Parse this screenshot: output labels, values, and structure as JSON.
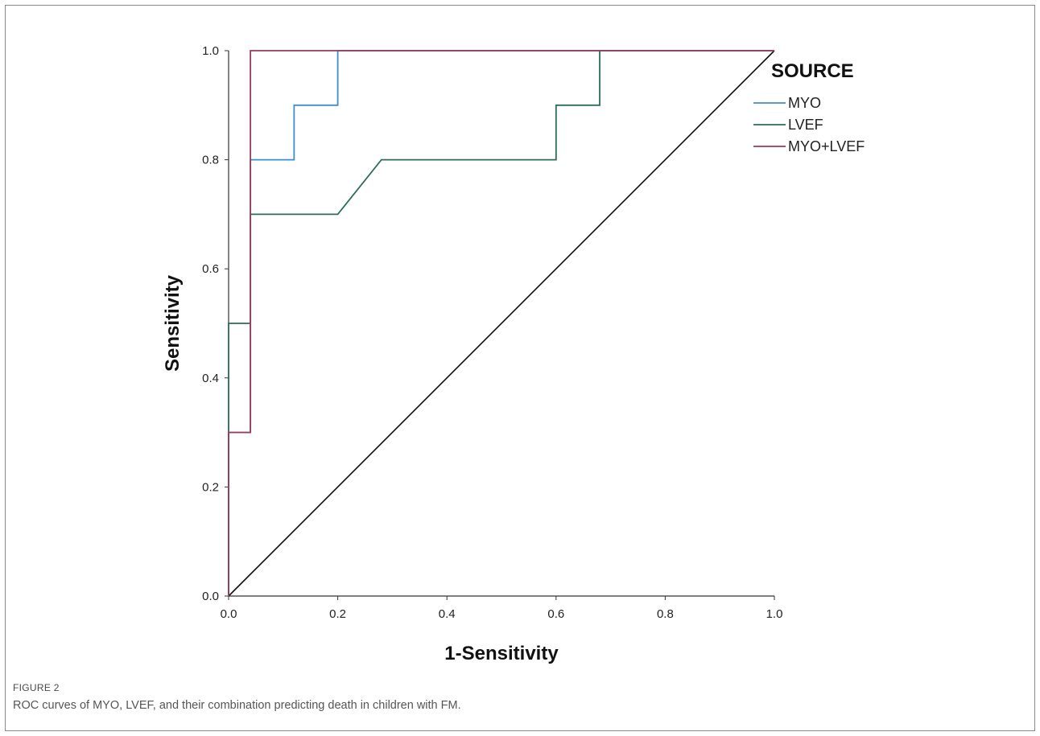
{
  "figure": {
    "label": "FIGURE 2",
    "caption": "ROC curves of MYO, LVEF, and their combination predicting death in children with FM."
  },
  "chart_data": {
    "type": "line",
    "xlabel": "1-Sensitivity",
    "ylabel": "Sensitivity",
    "xlim": [
      0,
      1
    ],
    "ylim": [
      0,
      1
    ],
    "xticks": [
      "0.0",
      "0.2",
      "0.4",
      "0.6",
      "0.8",
      "1.0"
    ],
    "yticks": [
      "0.0",
      "0.2",
      "0.4",
      "0.6",
      "0.8",
      "1.0"
    ],
    "grid": false,
    "legend": {
      "title": "SOURCE",
      "placement": "top-right"
    },
    "series": [
      {
        "name": "MYO",
        "color": "#3e8ec9",
        "x": [
          0,
          0,
          0.04,
          0.04,
          0.12,
          0.12,
          0.2,
          0.2,
          1
        ],
        "y": [
          0,
          0.3,
          0.3,
          0.8,
          0.8,
          0.9,
          0.9,
          1.0,
          1.0
        ]
      },
      {
        "name": "LVEF",
        "color": "#2d6b5a",
        "x": [
          0,
          0,
          0.04,
          0.04,
          0.2,
          0.28,
          0.6,
          0.6,
          0.68,
          0.68,
          1
        ],
        "y": [
          0,
          0.5,
          0.5,
          0.7,
          0.7,
          0.8,
          0.8,
          0.9,
          0.9,
          1.0,
          1.0
        ]
      },
      {
        "name": "MYO+LVEF",
        "color": "#9a3a5a",
        "x": [
          0,
          0,
          0.04,
          0.04,
          1
        ],
        "y": [
          0,
          0.3,
          0.3,
          1.0,
          1.0
        ]
      }
    ],
    "reference_line": {
      "color": "#111111",
      "x": [
        0,
        1
      ],
      "y": [
        0,
        1
      ]
    }
  }
}
